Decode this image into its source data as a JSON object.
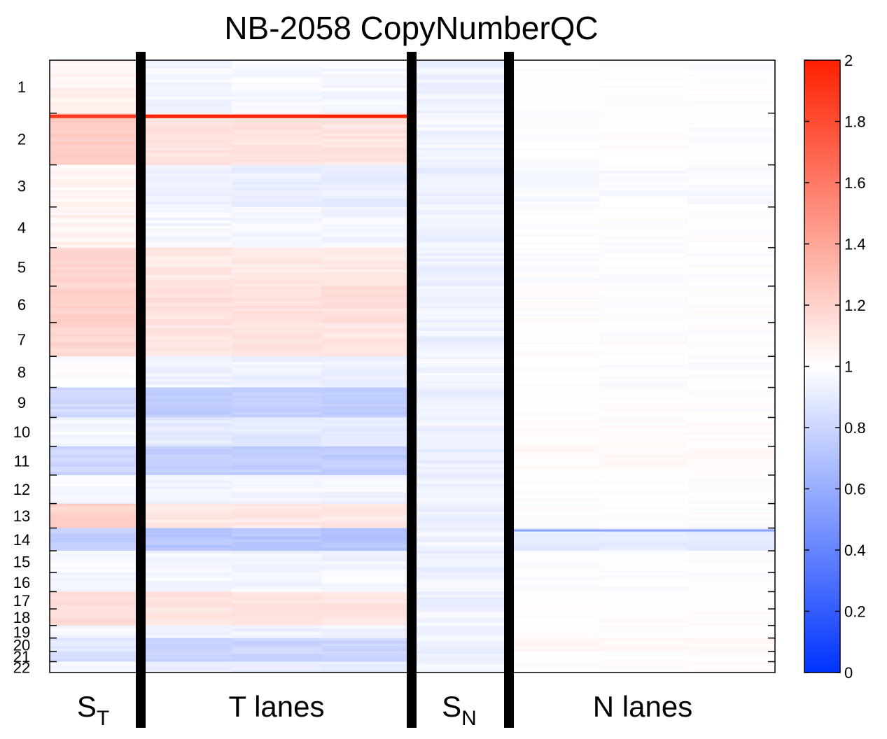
{
  "chart_data": {
    "type": "heatmap",
    "title": "NB-2058 CopyNumberQC",
    "row_labels": [
      "1",
      "2",
      "3",
      "4",
      "5",
      "6",
      "7",
      "8",
      "9",
      "10",
      "11",
      "12",
      "13",
      "14",
      "15",
      "16",
      "17",
      "18",
      "19",
      "20",
      "21",
      "22"
    ],
    "row_sizes": [
      249,
      243,
      198,
      191,
      181,
      171,
      159,
      146,
      141,
      136,
      135,
      134,
      115,
      107,
      102,
      90,
      81,
      78,
      59,
      63,
      48,
      51
    ],
    "panels": [
      {
        "label_main": "S",
        "label_sub": "T",
        "lanes": 1
      },
      {
        "label_main": "T lanes",
        "label_sub": "",
        "lanes": 3
      },
      {
        "label_main": "S",
        "label_sub": "N",
        "lanes": 1
      },
      {
        "label_main": "N lanes",
        "label_sub": "",
        "lanes": 3
      }
    ],
    "profiles": {
      "S_T": [
        1.06,
        1.22,
        1.04,
        1.06,
        1.18,
        1.2,
        1.18,
        1.0,
        0.82,
        0.96,
        0.8,
        0.97,
        1.2,
        0.76,
        0.97,
        0.97,
        1.15,
        1.16,
        0.96,
        0.9,
        0.82,
        0.95
      ],
      "T_lanes": [
        0.96,
        1.12,
        0.92,
        0.96,
        1.1,
        1.14,
        1.12,
        0.94,
        0.76,
        0.9,
        0.76,
        0.95,
        1.1,
        0.72,
        0.95,
        0.96,
        1.12,
        1.12,
        0.94,
        0.8,
        0.8,
        0.92
      ],
      "S_N": [
        0.94,
        0.95,
        0.93,
        0.94,
        0.93,
        0.94,
        0.93,
        0.95,
        0.93,
        0.94,
        0.93,
        0.94,
        0.93,
        0.94,
        0.93,
        0.94,
        0.93,
        0.95,
        0.93,
        0.94,
        0.93,
        0.94
      ],
      "N_lanes": [
        1.0,
        1.0,
        0.98,
        1.0,
        0.99,
        1.0,
        1.0,
        0.99,
        1.0,
        1.01,
        1.02,
        1.0,
        1.0,
        0.9,
        1.0,
        0.99,
        1.0,
        1.01,
        1.0,
        1.03,
        1.0,
        1.0
      ]
    },
    "features": [
      {
        "panel": "T_lanes",
        "row": "2",
        "value": 2.0
      },
      {
        "panel": "S_T",
        "row": "2",
        "value": 1.9
      },
      {
        "panel": "N_lanes",
        "row": "14",
        "value": 0.55
      }
    ],
    "colorbar": {
      "min": 0,
      "max": 2,
      "ticks": [
        0,
        0.2,
        0.4,
        0.6,
        0.8,
        1,
        1.2,
        1.4,
        1.6,
        1.8,
        2
      ],
      "low_color": "#0033ff",
      "mid_color": "#ffffff",
      "high_color": "#ff2000"
    }
  }
}
